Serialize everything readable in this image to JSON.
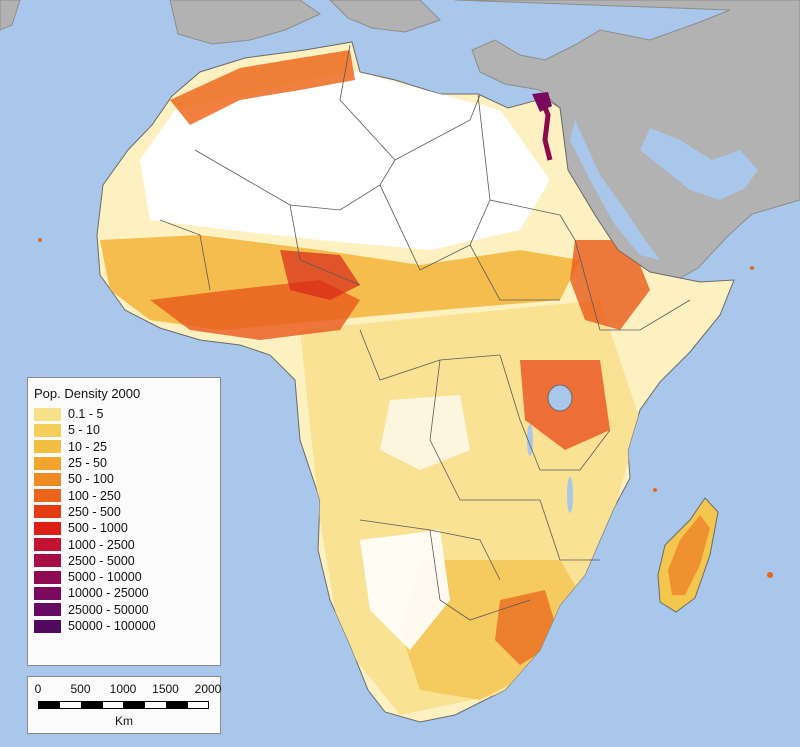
{
  "map": {
    "region": "Africa",
    "colors": {
      "ocean": "#a9c7ea",
      "other_land": "#b2b2b2",
      "uninhabited": "#ffffff",
      "border": "#555555"
    }
  },
  "legend": {
    "title": "Pop. Density 2000",
    "classes": [
      {
        "label": "0.1 - 5",
        "color": "#f6e08a"
      },
      {
        "label": "5 - 10",
        "color": "#f3cf5a"
      },
      {
        "label": "10 - 25",
        "color": "#f2bf40"
      },
      {
        "label": "25 - 50",
        "color": "#f1a52d"
      },
      {
        "label": "50 - 100",
        "color": "#ee8a22"
      },
      {
        "label": "100 - 250",
        "color": "#ec6419"
      },
      {
        "label": "250 - 500",
        "color": "#e63a12"
      },
      {
        "label": "500 - 1000",
        "color": "#dc1e16"
      },
      {
        "label": "1000 - 2500",
        "color": "#c41232"
      },
      {
        "label": "2500 - 5000",
        "color": "#a80e46"
      },
      {
        "label": "5000 - 10000",
        "color": "#8e0a52"
      },
      {
        "label": "10000 - 25000",
        "color": "#7a0a5e"
      },
      {
        "label": "25000 - 50000",
        "color": "#660a62"
      },
      {
        "label": "50000 - 100000",
        "color": "#520a5e"
      }
    ]
  },
  "scale": {
    "ticks": [
      "0",
      "500",
      "1000",
      "1500",
      "2000"
    ],
    "unit": "Km"
  }
}
